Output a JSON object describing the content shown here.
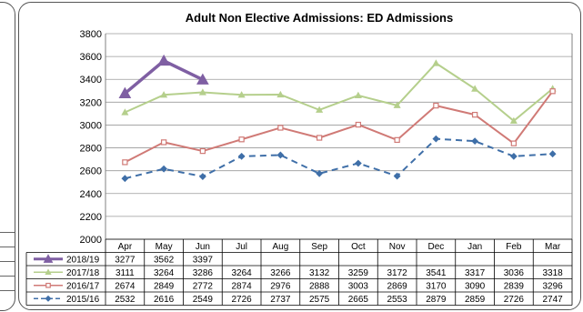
{
  "chart_data": {
    "type": "line",
    "title": "Adult Non Elective Admissions: ED Admissions",
    "xlabel": "",
    "ylabel": "",
    "ylim": [
      2000,
      3800
    ],
    "yticks": [
      2000,
      2200,
      2400,
      2600,
      2800,
      3000,
      3200,
      3400,
      3600,
      3800
    ],
    "grid": true,
    "legend": "data-table-below",
    "categories": [
      "Apr",
      "May",
      "Jun",
      "Jul",
      "Aug",
      "Sep",
      "Oct",
      "Nov",
      "Dec",
      "Jan",
      "Feb",
      "Mar"
    ],
    "series": [
      {
        "name": "2018/19",
        "color": "#7f5fa3",
        "marker": "triangle",
        "dash": "solid",
        "values": [
          3277,
          3562,
          3397,
          null,
          null,
          null,
          null,
          null,
          null,
          null,
          null,
          null
        ]
      },
      {
        "name": "2017/18",
        "color": "#b5cf8c",
        "marker": "triangle",
        "dash": "solid",
        "values": [
          3111,
          3264,
          3286,
          3264,
          3266,
          3132,
          3259,
          3172,
          3541,
          3317,
          3036,
          3318
        ]
      },
      {
        "name": "2016/17",
        "color": "#d07a76",
        "marker": "square",
        "dash": "solid",
        "values": [
          2674,
          2849,
          2772,
          2874,
          2976,
          2888,
          3003,
          2869,
          3170,
          3090,
          2839,
          3296
        ]
      },
      {
        "name": "2015/16",
        "color": "#3f6fa8",
        "marker": "diamond",
        "dash": "dashed",
        "values": [
          2532,
          2616,
          2549,
          2726,
          2737,
          2575,
          2665,
          2553,
          2879,
          2859,
          2726,
          2747
        ]
      }
    ]
  }
}
